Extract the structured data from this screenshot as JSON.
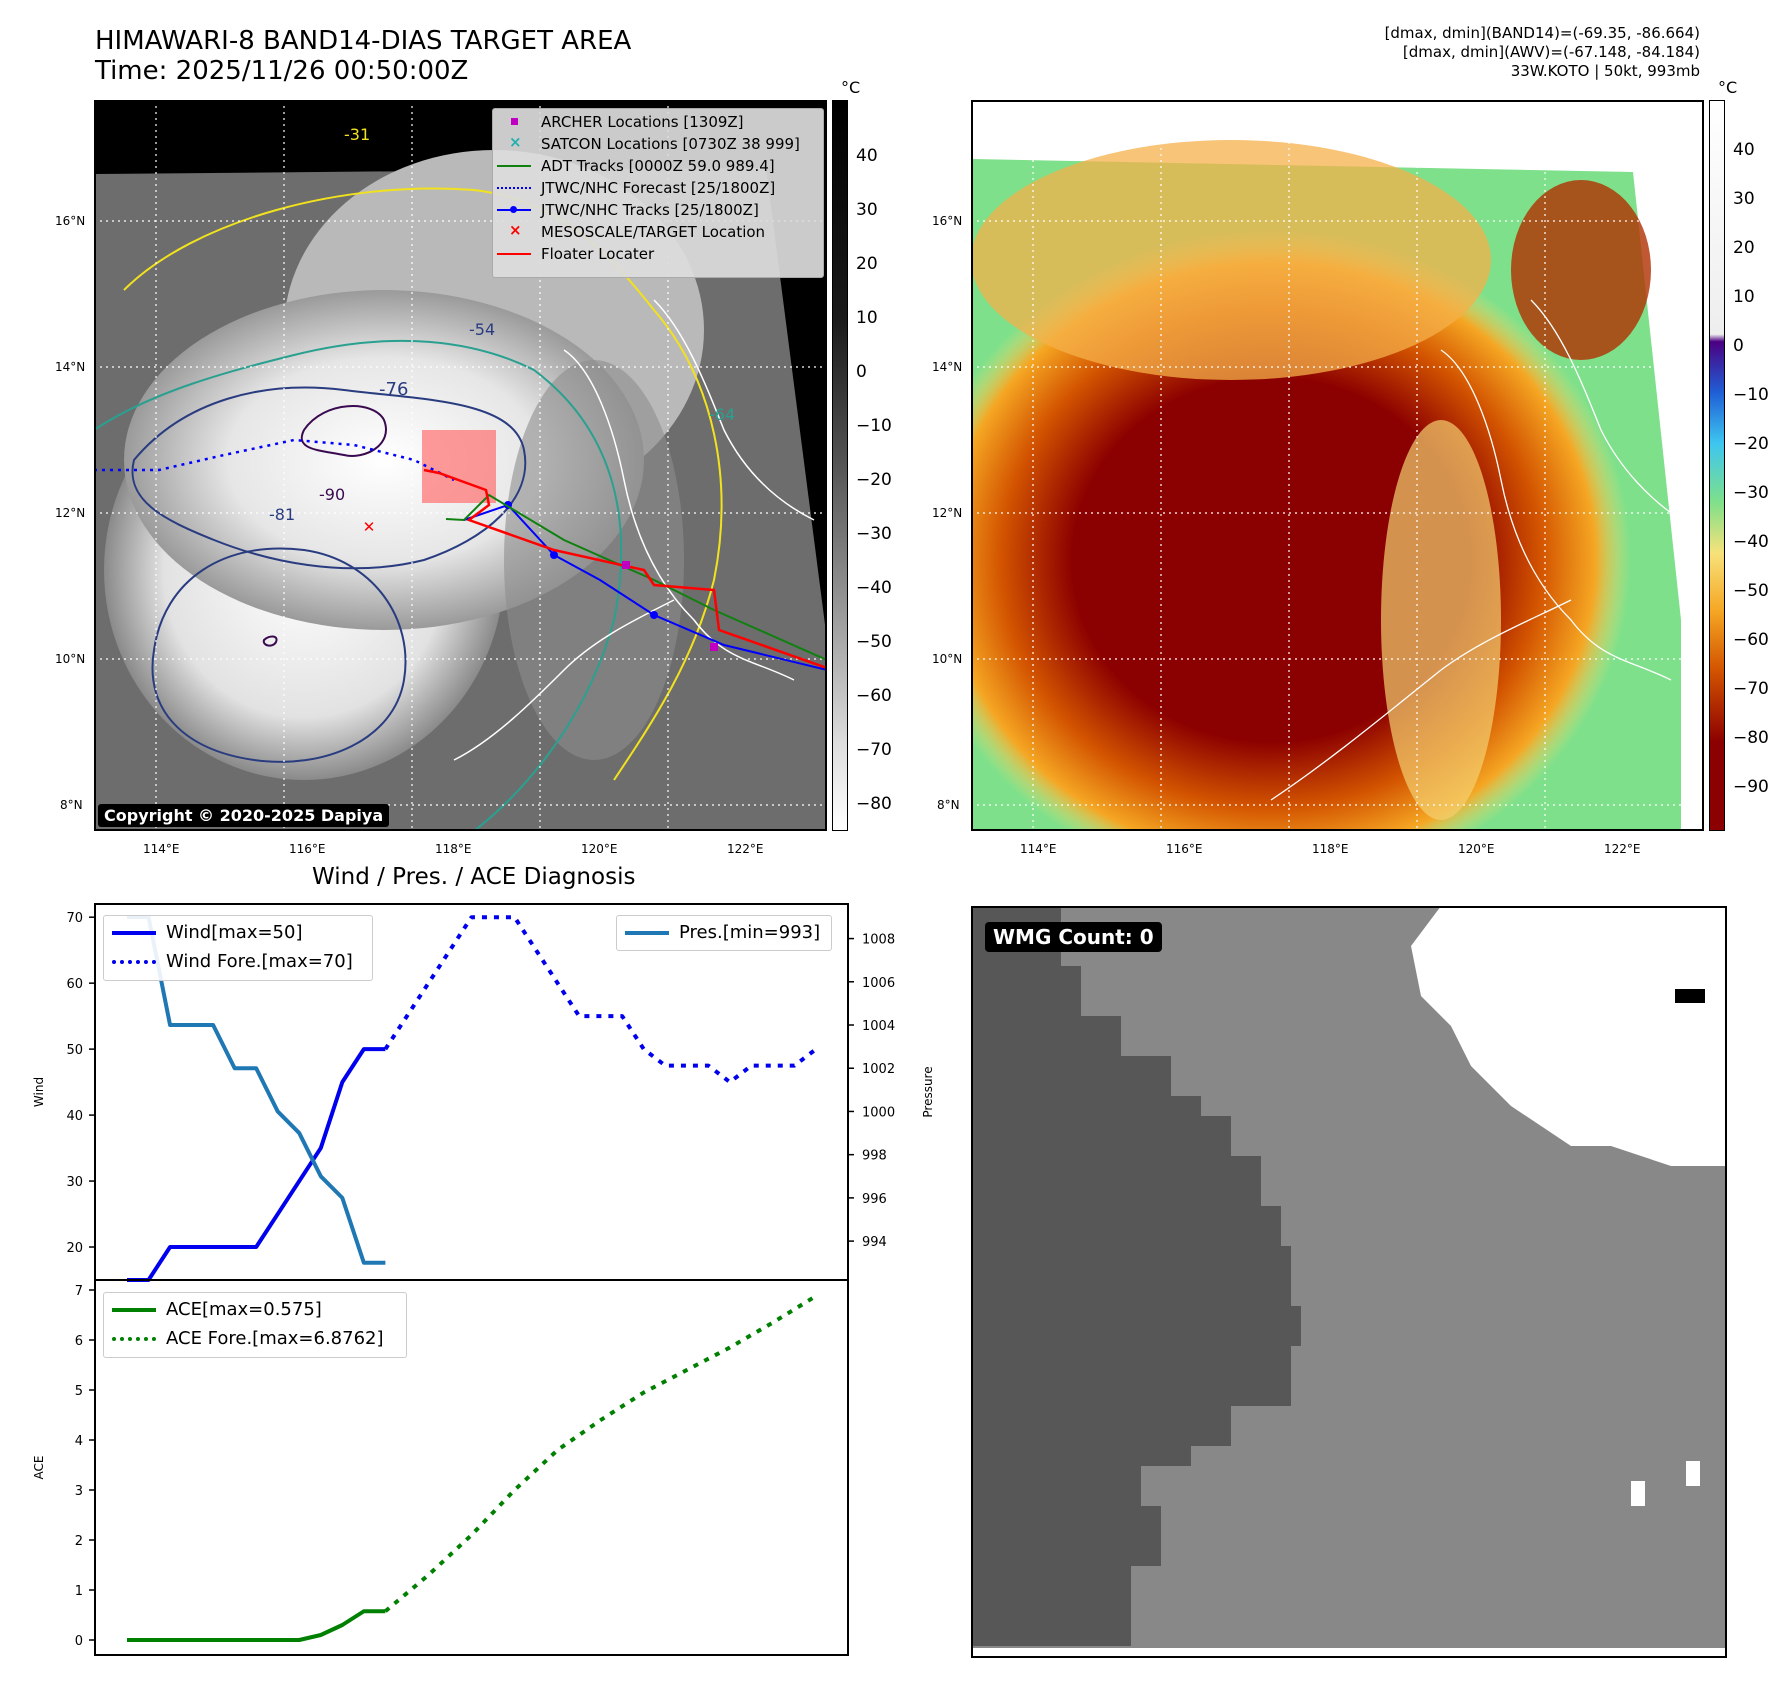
{
  "header": {
    "title_line1": "HIMAWARI-8 BAND14-DIAS TARGET AREA",
    "title_line2": "Time: 2025/11/26 00:50:00Z",
    "stat_line1": "[dmax, dmin](BAND14)=(-69.35, -86.664)",
    "stat_line2": "[dmax, dmin](AWV)=(-67.148, -84.184)",
    "stat_line3": "33W.KOTO | 50kt, 993mb"
  },
  "map": {
    "lon_labels": [
      "114°E",
      "116°E",
      "118°E",
      "120°E",
      "122°E"
    ],
    "lat_labels": [
      "16°N",
      "14°N",
      "12°N",
      "10°N",
      "8°N"
    ],
    "copyright": "Copyright © 2020-2025 Dapiya",
    "contour_labels": [
      "-31",
      "-54",
      "-64",
      "-76",
      "-81",
      "-90"
    ],
    "colors": {
      "archer": "#c000c0",
      "satcon": "#20b0b0",
      "adt": "#108010",
      "jtwc": "#0000ff",
      "target": "#ff0000",
      "floater": "#ff0000"
    }
  },
  "legend": [
    {
      "label": "ARCHER Locations [1309Z]",
      "marker": "square"
    },
    {
      "label": "SATCON Locations [0730Z 38 999]",
      "marker": "x"
    },
    {
      "label": "ADT Tracks [0000Z 59.0 989.4]",
      "marker": "line"
    },
    {
      "label": "JTWC/NHC Forecast [25/1800Z]",
      "marker": "dotted"
    },
    {
      "label": "JTWC/NHC Tracks [25/1800Z]",
      "marker": "line-dot"
    },
    {
      "label": "MESOSCALE/TARGET Location",
      "marker": "x"
    },
    {
      "label": "Floater Locater",
      "marker": "line"
    }
  ],
  "colorbar_gray": {
    "unit": "°C",
    "ticks": [
      "40",
      "30",
      "20",
      "10",
      "0",
      "−10",
      "−20",
      "−30",
      "−40",
      "−50",
      "−60",
      "−70",
      "−80"
    ]
  },
  "colorbar_color": {
    "unit": "°C",
    "ticks": [
      "40",
      "30",
      "20",
      "10",
      "0",
      "−10",
      "−20",
      "−30",
      "−40",
      "−50",
      "−60",
      "−70",
      "−80",
      "−90"
    ]
  },
  "diagnosis_title": "Wind / Pres. / ACE Diagnosis",
  "wmg": {
    "label": "WMG Count: 0"
  },
  "chart_data": [
    {
      "type": "line",
      "ylabel": "Wind",
      "y2label": "Pressure",
      "ylim": [
        15,
        72
      ],
      "y2lim": [
        992.2,
        1009.6
      ],
      "yticks": [
        20,
        30,
        40,
        50,
        60,
        70
      ],
      "y2ticks": [
        994,
        996,
        998,
        1000,
        1002,
        1004,
        1006,
        1008
      ],
      "series": [
        {
          "name": "Wind[max=50]",
          "style": "solid",
          "color": "#0000ee",
          "x": [
            0,
            1,
            2,
            3,
            4,
            5,
            6,
            7,
            8,
            9,
            10,
            11,
            12
          ],
          "values": [
            15,
            15,
            20,
            20,
            20,
            20,
            20,
            25,
            30,
            35,
            45,
            50,
            50
          ]
        },
        {
          "name": "Wind Fore.[max=70]",
          "style": "dotted",
          "color": "#0000ee",
          "x": [
            12,
            13,
            14,
            15,
            16,
            17,
            18,
            19,
            20,
            21,
            22,
            23,
            24,
            25,
            26,
            27,
            28,
            29,
            30,
            31,
            32
          ],
          "values": [
            50,
            55,
            60,
            65,
            70,
            70,
            70,
            65,
            60,
            55,
            55,
            55,
            50,
            47.5,
            47.5,
            47.5,
            45,
            47.5,
            47.5,
            47.5,
            50
          ]
        },
        {
          "name": "Pres.[min=993]",
          "style": "solid",
          "color": "#1f77b4",
          "axis": "right",
          "x": [
            0,
            1,
            2,
            3,
            4,
            5,
            6,
            7,
            8,
            9,
            10,
            11,
            12
          ],
          "values": [
            1009,
            1009,
            1004,
            1004,
            1004,
            1002,
            1002,
            1000,
            999,
            997,
            996,
            993,
            993
          ]
        }
      ]
    },
    {
      "type": "line",
      "ylabel": "ACE",
      "ylim": [
        -0.3,
        7.2
      ],
      "yticks": [
        0,
        1,
        2,
        3,
        4,
        5,
        6,
        7
      ],
      "series": [
        {
          "name": "ACE[max=0.575]",
          "style": "solid",
          "color": "#008000",
          "x": [
            0,
            1,
            2,
            3,
            4,
            5,
            6,
            7,
            8,
            9,
            10,
            11,
            12
          ],
          "values": [
            0,
            0,
            0,
            0,
            0,
            0,
            0,
            0,
            0,
            0.1,
            0.3,
            0.575,
            0.575
          ]
        },
        {
          "name": "ACE Fore.[max=6.8762]",
          "style": "dotted",
          "color": "#008000",
          "x": [
            12,
            14,
            16,
            18,
            20,
            22,
            24,
            26,
            28,
            30,
            32
          ],
          "values": [
            0.575,
            1.3,
            2.1,
            3.0,
            3.8,
            4.4,
            4.95,
            5.4,
            5.85,
            6.35,
            6.88
          ]
        }
      ]
    }
  ]
}
